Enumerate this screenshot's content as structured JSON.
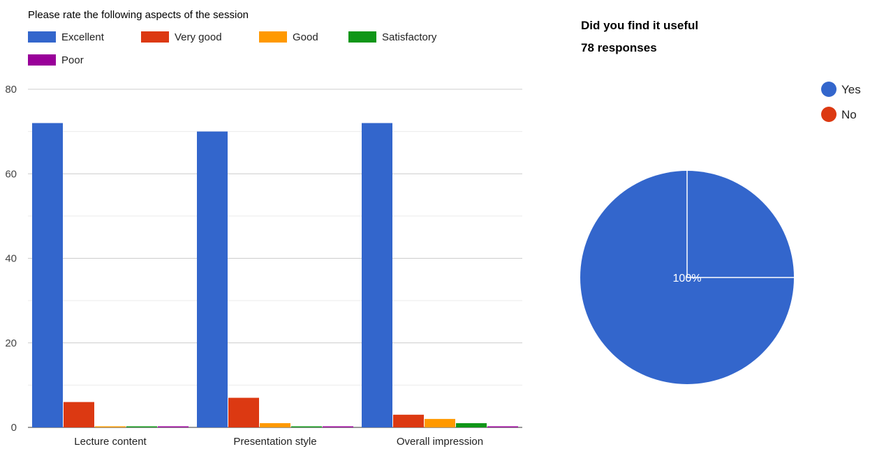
{
  "chart_data": [
    {
      "type": "bar",
      "title": "Please rate the following aspects of the session",
      "categories": [
        "Lecture content",
        "Presentation style",
        "Overall impression"
      ],
      "series": [
        {
          "name": "Excellent",
          "color": "#3366cc",
          "values": [
            72,
            70,
            72
          ]
        },
        {
          "name": "Very good",
          "color": "#dc3912",
          "values": [
            6,
            7,
            3
          ]
        },
        {
          "name": "Good",
          "color": "#ff9900",
          "values": [
            0,
            1,
            2
          ]
        },
        {
          "name": "Satisfactory",
          "color": "#109618",
          "values": [
            0,
            0,
            1
          ]
        },
        {
          "name": "Poor",
          "color": "#990099",
          "values": [
            0,
            0,
            0
          ]
        }
      ],
      "yticks": [
        "0",
        "20",
        "40",
        "60",
        "80"
      ],
      "ylim": [
        0,
        80
      ],
      "grid": true,
      "legend_position": "top-left"
    },
    {
      "type": "pie",
      "title": "Did you find it useful",
      "subtitle": "78 responses",
      "slices": [
        {
          "name": "Yes",
          "color": "#3366cc",
          "value": 100
        },
        {
          "name": "No",
          "color": "#dc3912",
          "value": 0
        }
      ],
      "slice_label": "100%",
      "legend_position": "right"
    }
  ]
}
